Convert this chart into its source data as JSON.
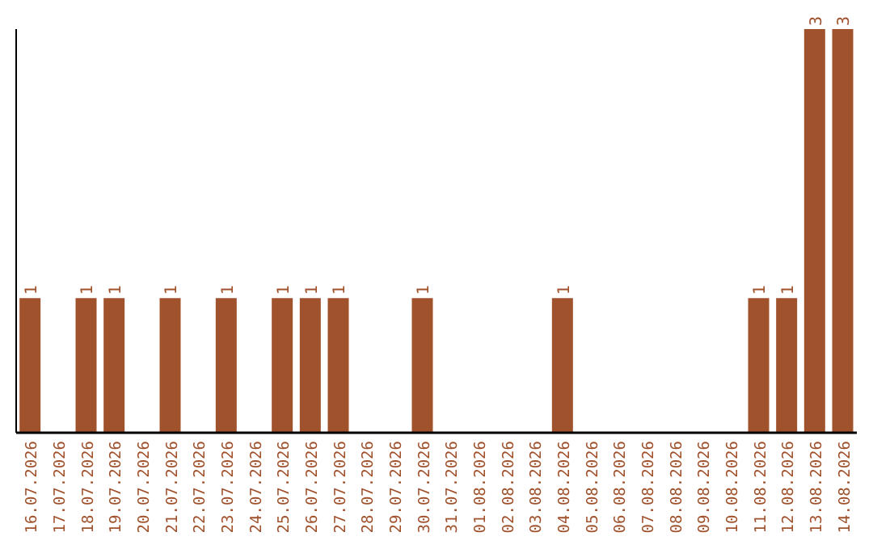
{
  "chart_data": {
    "type": "bar",
    "categories": [
      "16.07.2026",
      "17.07.2026",
      "18.07.2026",
      "19.07.2026",
      "20.07.2026",
      "21.07.2026",
      "22.07.2026",
      "23.07.2026",
      "24.07.2026",
      "25.07.2026",
      "26.07.2026",
      "27.07.2026",
      "28.07.2026",
      "29.07.2026",
      "30.07.2026",
      "31.07.2026",
      "01.08.2026",
      "02.08.2026",
      "03.08.2026",
      "04.08.2026",
      "05.08.2026",
      "06.08.2026",
      "07.08.2026",
      "08.08.2026",
      "09.08.2026",
      "10.08.2026",
      "11.08.2026",
      "12.08.2026",
      "13.08.2026",
      "14.08.2026"
    ],
    "values": [
      1,
      0,
      1,
      1,
      0,
      1,
      0,
      1,
      0,
      1,
      1,
      1,
      0,
      0,
      1,
      0,
      0,
      0,
      0,
      1,
      0,
      0,
      0,
      0,
      0,
      0,
      1,
      1,
      3,
      3
    ],
    "value_labels": [
      "1",
      null,
      "1",
      "1",
      null,
      "1",
      null,
      "1",
      null,
      "1",
      "1",
      "1",
      null,
      null,
      "1",
      null,
      null,
      null,
      null,
      "1",
      null,
      null,
      null,
      null,
      null,
      null,
      "1",
      "1",
      "3",
      "3"
    ],
    "color": "#a0522d",
    "tick_labels": "x",
    "grid": false,
    "legend": false
  }
}
